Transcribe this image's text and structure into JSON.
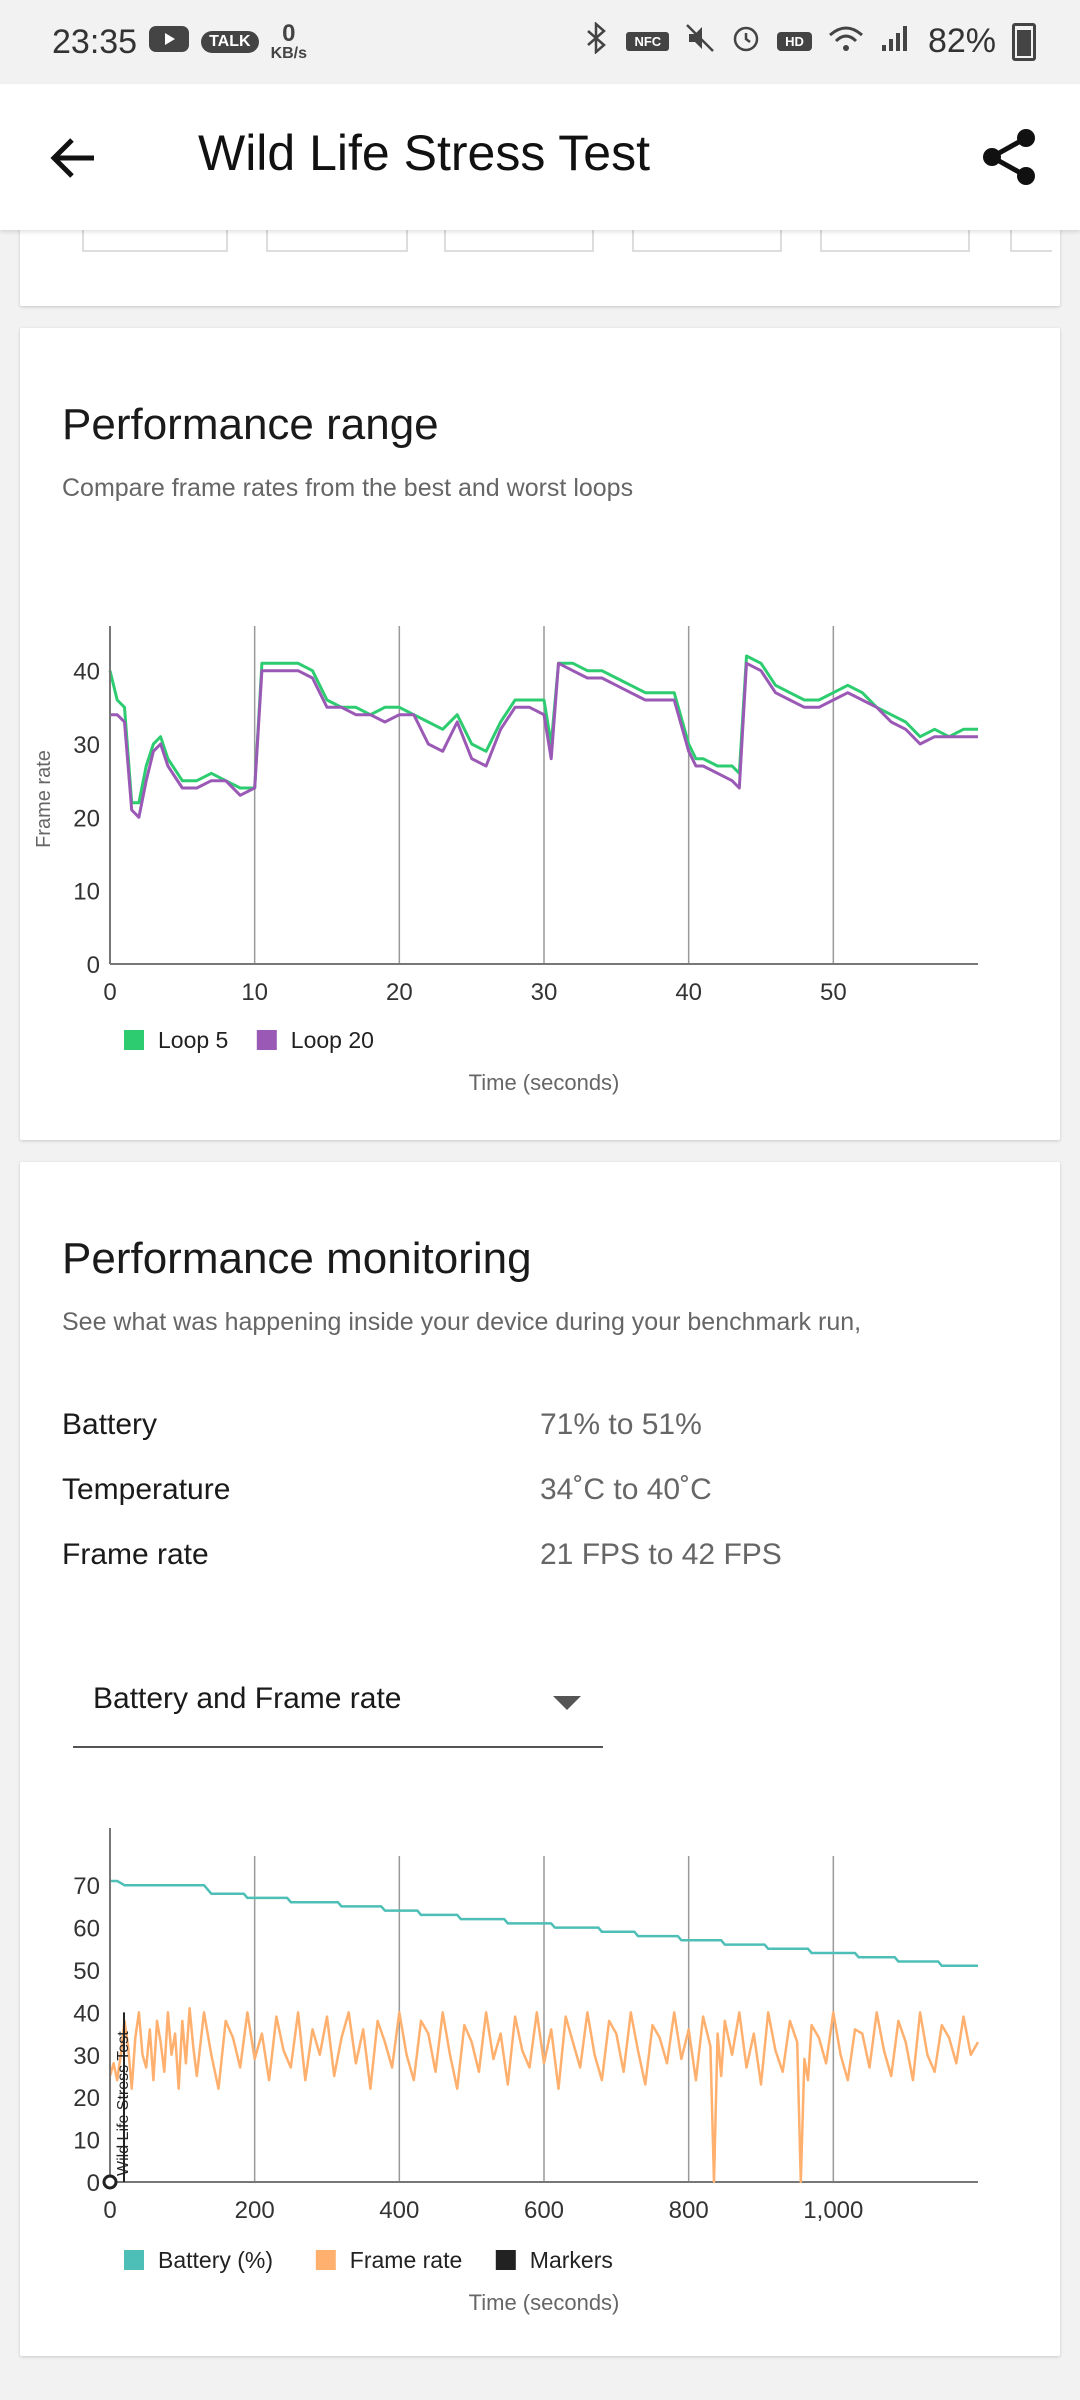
{
  "status_bar": {
    "time": "23:35",
    "net_speed_value": "0",
    "net_speed_unit": "KB/s",
    "talk_label": "TALK",
    "nfc_label": "NFC",
    "hd_label": "HD",
    "battery_percent": "82%"
  },
  "app_bar": {
    "title": "Wild Life Stress Test"
  },
  "performance_range": {
    "title": "Performance range",
    "subtitle": "Compare frame rates from the best and worst loops"
  },
  "performance_monitoring": {
    "title": "Performance monitoring",
    "subtitle": "See what was happening inside your device during your benchmark run,",
    "stats": [
      {
        "label": "Battery",
        "value": "71% to 51%"
      },
      {
        "label": "Temperature",
        "value": "34˚C to 40˚C"
      },
      {
        "label": "Frame rate",
        "value": "21 FPS to 42 FPS"
      }
    ],
    "dropdown_selected": "Battery and Frame rate"
  },
  "chart_data": [
    {
      "type": "line",
      "ylabel": "Frame rate",
      "xlabel": "Time (seconds)",
      "xlim": [
        0,
        60
      ],
      "ylim": [
        0,
        45
      ],
      "xticks": [
        0,
        10,
        20,
        30,
        40,
        50
      ],
      "yticks": [
        0,
        10,
        20,
        30,
        40
      ],
      "legend_position": "bottom-left",
      "colors": {
        "Loop 5": "#2ecc71",
        "Loop 20": "#9b59b6"
      },
      "series": [
        {
          "name": "Loop 5",
          "x": [
            0,
            0.5,
            1,
            1.5,
            2,
            2.5,
            3,
            3.5,
            4,
            5,
            6,
            7,
            8,
            9,
            10,
            10.5,
            11,
            12,
            13,
            14,
            15,
            16,
            17,
            18,
            19,
            20,
            21,
            22,
            23,
            24,
            25,
            26,
            27,
            28,
            29,
            30,
            30.5,
            31,
            32,
            33,
            34,
            35,
            36,
            37,
            38,
            39,
            40,
            40.5,
            41,
            42,
            43,
            43.5,
            44,
            45,
            46,
            47,
            48,
            49,
            50,
            51,
            52,
            53,
            54,
            55,
            56,
            57,
            58,
            59,
            60
          ],
          "values": [
            40,
            36,
            35,
            22,
            22,
            27,
            30,
            31,
            28,
            25,
            25,
            26,
            25,
            24,
            24,
            41,
            41,
            41,
            41,
            40,
            36,
            35,
            35,
            34,
            35,
            35,
            34,
            33,
            32,
            34,
            30,
            29,
            33,
            36,
            36,
            36,
            30,
            41,
            41,
            40,
            40,
            39,
            38,
            37,
            37,
            37,
            30,
            28,
            28,
            27,
            27,
            26,
            42,
            41,
            38,
            37,
            36,
            36,
            37,
            38,
            37,
            35,
            34,
            33,
            31,
            32,
            31,
            32,
            32
          ]
        },
        {
          "name": "Loop 20",
          "x": [
            0,
            0.5,
            1,
            1.5,
            2,
            2.5,
            3,
            3.5,
            4,
            5,
            6,
            7,
            8,
            9,
            10,
            10.5,
            11,
            12,
            13,
            14,
            15,
            16,
            17,
            18,
            19,
            20,
            21,
            22,
            23,
            24,
            25,
            26,
            27,
            28,
            29,
            30,
            30.5,
            31,
            32,
            33,
            34,
            35,
            36,
            37,
            38,
            39,
            40,
            40.5,
            41,
            42,
            43,
            43.5,
            44,
            45,
            46,
            47,
            48,
            49,
            50,
            51,
            52,
            53,
            54,
            55,
            56,
            57,
            58,
            59,
            60
          ],
          "values": [
            34,
            34,
            33,
            21,
            20,
            25,
            29,
            30,
            27,
            24,
            24,
            25,
            25,
            23,
            24,
            40,
            40,
            40,
            40,
            39,
            35,
            35,
            34,
            34,
            33,
            34,
            34,
            30,
            29,
            33,
            28,
            27,
            32,
            35,
            35,
            34,
            28,
            41,
            40,
            39,
            39,
            38,
            37,
            36,
            36,
            36,
            29,
            27,
            27,
            26,
            25,
            24,
            41,
            40,
            37,
            36,
            35,
            35,
            36,
            37,
            36,
            35,
            33,
            32,
            30,
            31,
            31,
            31,
            31
          ]
        }
      ]
    },
    {
      "type": "line",
      "xlabel": "Time (seconds)",
      "xlim": [
        0,
        1200
      ],
      "ylim": [
        0,
        75
      ],
      "xticks": [
        0,
        200,
        400,
        600,
        800,
        1000
      ],
      "xtick_labels": [
        "0",
        "200",
        "400",
        "600",
        "800",
        "1,000"
      ],
      "yticks": [
        0,
        10,
        20,
        30,
        40,
        50,
        60,
        70
      ],
      "legend_position": "bottom-left",
      "colors": {
        "Battery (%)": "#4dbfb7",
        "Frame rate": "#ffb06e",
        "Markers": "#222222"
      },
      "marker_label": "Wild Life Stress Test",
      "series": [
        {
          "name": "Battery (%)",
          "x": [
            0,
            10,
            20,
            130,
            140,
            185,
            190,
            245,
            250,
            315,
            320,
            375,
            380,
            425,
            430,
            480,
            485,
            545,
            550,
            610,
            615,
            675,
            680,
            725,
            730,
            785,
            790,
            845,
            850,
            905,
            910,
            965,
            970,
            1030,
            1035,
            1085,
            1090,
            1145,
            1150,
            1200
          ],
          "values": [
            71,
            71,
            70,
            70,
            68,
            68,
            67,
            67,
            66,
            66,
            65,
            65,
            64,
            64,
            63,
            63,
            62,
            62,
            61,
            61,
            60,
            60,
            59,
            59,
            58,
            58,
            57,
            57,
            56,
            56,
            55,
            55,
            54,
            54,
            53,
            53,
            52,
            52,
            51,
            51
          ]
        },
        {
          "name": "Frame rate",
          "x": [
            0,
            5,
            10,
            15,
            20,
            25,
            30,
            35,
            40,
            45,
            50,
            55,
            60,
            65,
            70,
            75,
            80,
            85,
            90,
            95,
            100,
            105,
            110,
            115,
            120,
            130,
            140,
            150,
            160,
            170,
            180,
            190,
            200,
            210,
            220,
            230,
            240,
            250,
            260,
            270,
            280,
            290,
            300,
            310,
            320,
            330,
            340,
            350,
            360,
            370,
            380,
            390,
            400,
            410,
            420,
            430,
            440,
            450,
            460,
            470,
            480,
            490,
            500,
            510,
            520,
            530,
            540,
            550,
            560,
            570,
            580,
            590,
            600,
            610,
            620,
            630,
            640,
            650,
            660,
            670,
            680,
            690,
            700,
            710,
            720,
            730,
            740,
            750,
            760,
            770,
            780,
            790,
            800,
            810,
            820,
            830,
            835,
            840,
            845,
            850,
            860,
            870,
            880,
            890,
            900,
            910,
            920,
            930,
            940,
            950,
            955,
            960,
            965,
            970,
            980,
            990,
            1000,
            1010,
            1020,
            1030,
            1040,
            1050,
            1060,
            1070,
            1080,
            1090,
            1100,
            1110,
            1120,
            1130,
            1140,
            1150,
            1160,
            1170,
            1180,
            1190,
            1200
          ],
          "values": [
            25,
            28,
            24,
            30,
            38,
            32,
            22,
            34,
            40,
            30,
            27,
            36,
            24,
            38,
            33,
            26,
            40,
            30,
            35,
            22,
            38,
            28,
            41,
            32,
            25,
            40,
            30,
            22,
            38,
            34,
            27,
            40,
            29,
            35,
            24,
            39,
            31,
            27,
            40,
            24,
            36,
            30,
            39,
            25,
            34,
            40,
            28,
            36,
            22,
            38,
            33,
            27,
            40,
            30,
            24,
            38,
            35,
            26,
            40,
            30,
            22,
            37,
            33,
            26,
            40,
            29,
            35,
            23,
            39,
            31,
            27,
            40,
            28,
            36,
            22,
            39,
            33,
            27,
            40,
            30,
            24,
            38,
            35,
            26,
            40,
            31,
            23,
            37,
            34,
            28,
            40,
            29,
            36,
            24,
            39,
            32,
            0,
            35,
            25,
            38,
            30,
            40,
            27,
            35,
            23,
            40,
            31,
            26,
            38,
            33,
            0,
            29,
            24,
            37,
            34,
            28,
            40,
            30,
            24,
            36,
            35,
            27,
            40,
            31,
            25,
            38,
            33,
            24,
            40,
            30,
            26,
            37,
            34,
            28,
            39,
            30,
            33
          ]
        },
        {
          "name": "Markers",
          "x": [
            0,
            0
          ],
          "values": [
            0,
            40
          ]
        }
      ]
    }
  ]
}
